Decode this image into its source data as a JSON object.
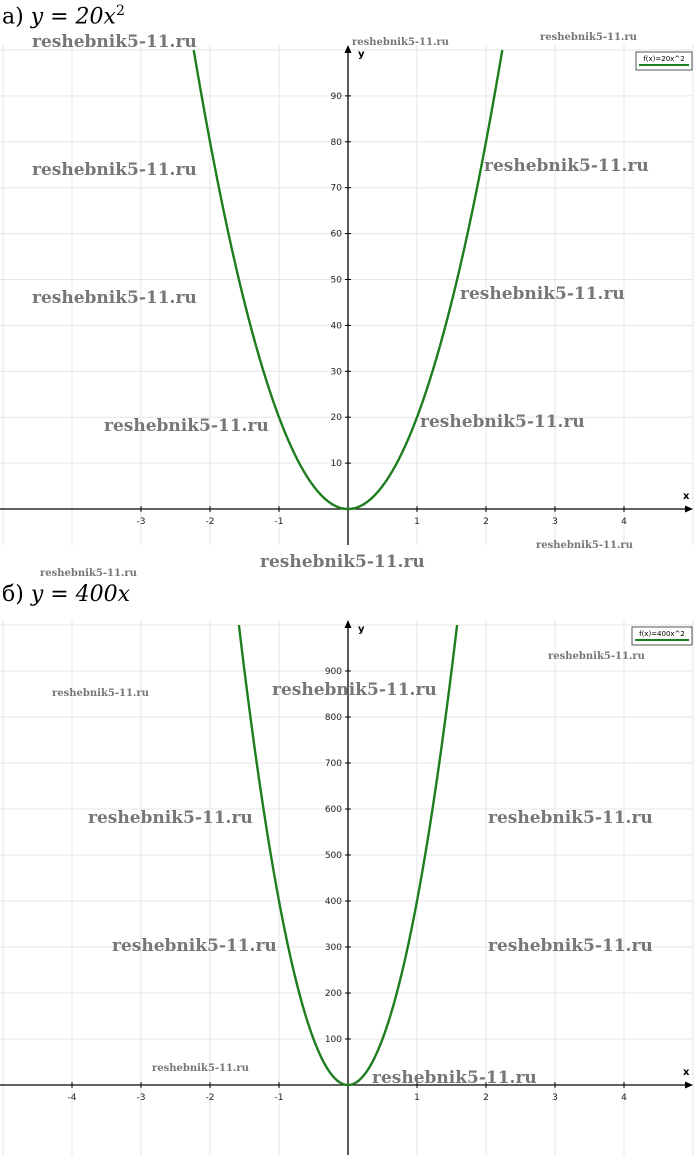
{
  "headings": {
    "a_prefix": "а)",
    "a_formula": "y = 20x",
    "a_exponent": "2",
    "b_prefix": "б)",
    "b_formula": "y = 400x"
  },
  "watermark_text": "reshebnik5-11.ru",
  "colors": {
    "curve": "#1e7d1e",
    "grid": "#e6e6e6",
    "axis": "#000000"
  },
  "chart_data": [
    {
      "type": "line",
      "title": "",
      "xlabel": "x",
      "ylabel": "y",
      "xlim": [
        -5,
        5
      ],
      "ylim": [
        0,
        100
      ],
      "x_ticks": [
        -3,
        -2,
        -1,
        1,
        2,
        3,
        4
      ],
      "y_ticks": [
        10,
        20,
        30,
        40,
        50,
        60,
        70,
        80,
        90
      ],
      "grid": true,
      "legend": "top-right",
      "series": [
        {
          "name": "f(x)=20x^2",
          "coefficient": 20,
          "x": [
            -2.236,
            -2,
            -1.5,
            -1,
            -0.5,
            0,
            0.5,
            1,
            1.5,
            2,
            2.236
          ],
          "y": [
            100,
            80,
            45,
            20,
            5,
            0,
            5,
            20,
            45,
            80,
            100
          ]
        }
      ]
    },
    {
      "type": "line",
      "title": "",
      "xlabel": "x",
      "ylabel": "y",
      "xlim": [
        -5,
        5
      ],
      "ylim": [
        0,
        1000
      ],
      "x_ticks": [
        -4,
        -3,
        -2,
        -1,
        1,
        2,
        3,
        4
      ],
      "y_ticks": [
        100,
        200,
        300,
        400,
        500,
        600,
        700,
        800,
        900
      ],
      "grid": true,
      "legend": "top-right",
      "series": [
        {
          "name": "f(x)=400x^2",
          "coefficient": 400,
          "x": [
            -1.58,
            -1.5,
            -1,
            -0.5,
            0,
            0.5,
            1,
            1.5,
            1.58
          ],
          "y": [
            1000,
            900,
            400,
            100,
            0,
            100,
            400,
            900,
            1000
          ]
        }
      ]
    }
  ]
}
